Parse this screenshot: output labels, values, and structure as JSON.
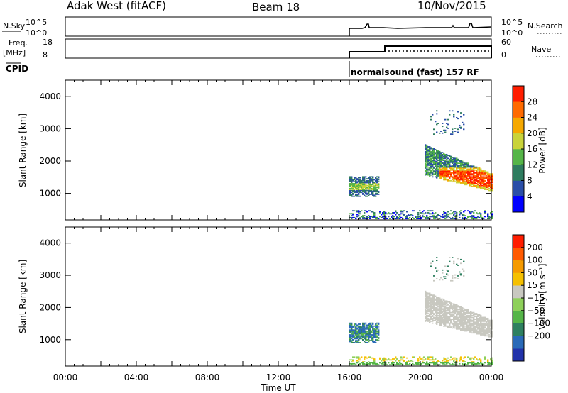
{
  "header": {
    "radar": "Adak West (fitACF)",
    "beam": "Beam 18",
    "date": "10/Nov/2015"
  },
  "params": {
    "nsky_label": "N.Sky",
    "nsky_ticks": [
      "10^5",
      "10^0"
    ],
    "nsearch_label": "N.Search",
    "nsearch_ticks": [
      "10^5",
      "10^0"
    ],
    "freq_label": "Freq.",
    "freq_unit": "[MHz]",
    "freq_ticks": [
      "18",
      "8"
    ],
    "nave_label": "Nave",
    "nave_ticks": [
      "60",
      "0"
    ],
    "cpid_label": "CPID",
    "cpid_text": "normalsound (fast) 157 RF"
  },
  "chart_data": [
    {
      "type": "heatmap",
      "panel": "power",
      "ylabel": "Slant Range [km]",
      "ylim": [
        180,
        4500
      ],
      "yticks": [
        1000,
        2000,
        3000,
        4000
      ],
      "ytick_labels": [
        "1000",
        "2000",
        "3000",
        "4000"
      ],
      "xlim_hours": [
        0,
        24
      ],
      "colorbar_label": "Power [dB]",
      "colorbar_ticks": [
        "4",
        "8",
        "12",
        "16",
        "20",
        "24",
        "28"
      ],
      "colorbar_colors": [
        "#0000ff",
        "#2a4ea8",
        "#2e7c5f",
        "#55b548",
        "#c9d33a",
        "#f5a800",
        "#ff6a00",
        "#ff1d00"
      ],
      "data_start_hour": 16,
      "regions": [
        {
          "name": "near-range echoes",
          "t0": 16.0,
          "t1": 24.0,
          "r0": 200,
          "r1": 450
        },
        {
          "name": "patch 16-17.5 UT",
          "t0": 16.0,
          "t1": 17.5,
          "r0": 900,
          "r1": 1500
        },
        {
          "name": "main echo band",
          "t0": 20.2,
          "t1": 24.0,
          "r0": 900,
          "r1": 2400
        },
        {
          "name": "scattered far range",
          "t0": 20.5,
          "t1": 22.5,
          "r0": 2800,
          "r1": 3500
        }
      ]
    },
    {
      "type": "heatmap",
      "panel": "velocity",
      "ylabel": "Slant Range [km]",
      "ylim": [
        180,
        4500
      ],
      "yticks": [
        1000,
        2000,
        3000,
        4000
      ],
      "ytick_labels": [
        "1000",
        "2000",
        "3000",
        "4000"
      ],
      "xlim_hours": [
        0,
        24
      ],
      "xlabel": "Time UT",
      "xtick_labels": [
        "00:00",
        "04:00",
        "08:00",
        "12:00",
        "16:00",
        "20:00",
        "00:00"
      ],
      "colorbar_label": "Velocity [m s⁻¹]",
      "colorbar_ticks": [
        "200",
        "100",
        "50",
        "15",
        "−15",
        "−50",
        "−100",
        "−200"
      ],
      "colorbar_colors": [
        "#2233aa",
        "#2a6ab8",
        "#2e8060",
        "#55b548",
        "#8ed05a",
        "#c8c8c0",
        "#f5c000",
        "#f59a00",
        "#ff5a00",
        "#ff1d00"
      ],
      "data_start_hour": 16
    }
  ]
}
